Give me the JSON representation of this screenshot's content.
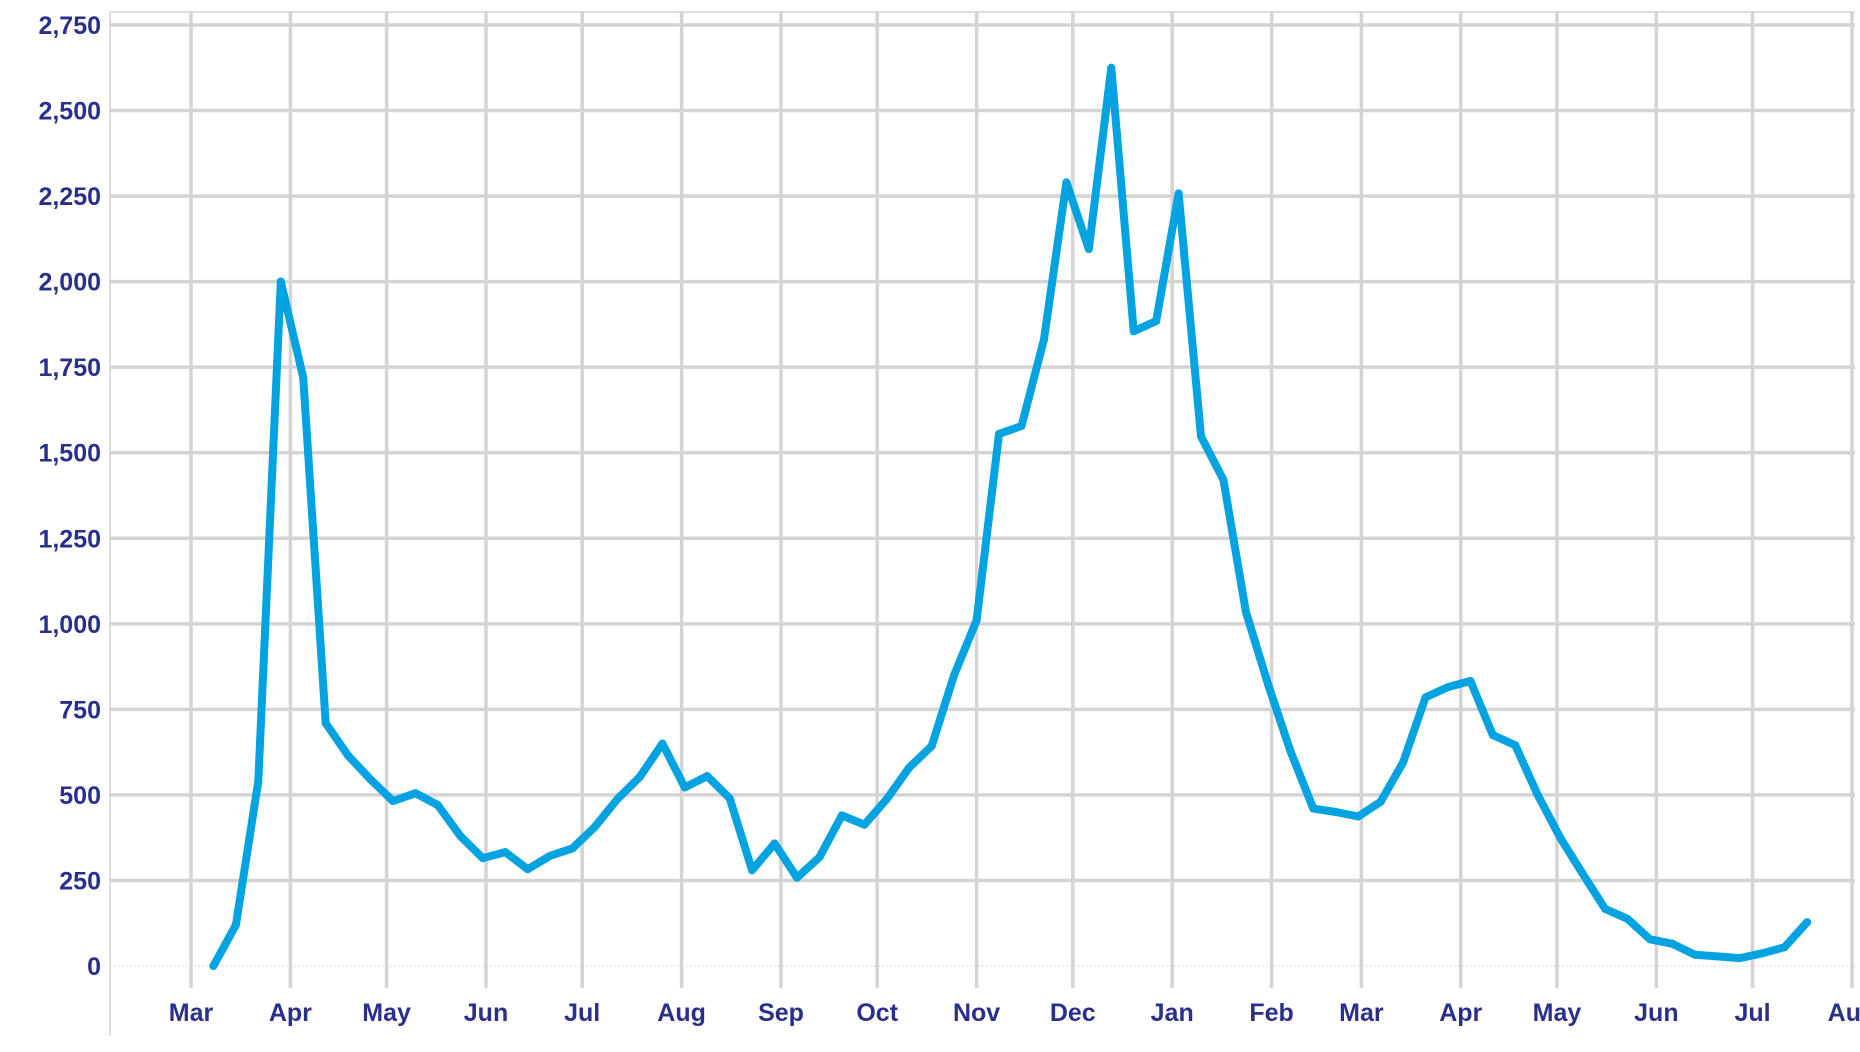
{
  "colors": {
    "line": "#02A3E0",
    "grid": "#D4D4D4",
    "zero_line": "#C8C8C8",
    "tick_label": "#2B2F8C",
    "background": "#FFFFFF"
  },
  "chart_data": {
    "type": "line",
    "title": "",
    "xlabel": "",
    "ylabel": "",
    "grid": true,
    "legend": "none",
    "ylim": [
      0,
      2750
    ],
    "y_ticks": [
      0,
      250,
      500,
      750,
      1000,
      1250,
      1500,
      1750,
      2000,
      2250,
      2500,
      2750
    ],
    "y_tick_labels": [
      "0",
      "250",
      "500",
      "750",
      "1,000",
      "1,250",
      "1,500",
      "1,750",
      "2,000",
      "2,250",
      "2,500",
      "2,750"
    ],
    "x_tick_labels": [
      "Mar",
      "Apr",
      "May",
      "Jun",
      "Jul",
      "Aug",
      "Sep",
      "Oct",
      "Nov",
      "Dec",
      "Jan",
      "Feb",
      "Mar",
      "Apr",
      "May",
      "Jun",
      "Jul",
      "Aug"
    ],
    "x_tick_dates": [
      "2020-03-01",
      "2020-04-01",
      "2020-05-01",
      "2020-06-01",
      "2020-07-01",
      "2020-08-01",
      "2020-09-01",
      "2020-10-01",
      "2020-11-01",
      "2020-12-01",
      "2021-01-01",
      "2021-02-01",
      "2021-03-01",
      "2021-04-01",
      "2021-05-01",
      "2021-06-01",
      "2021-07-01",
      "2021-08-01"
    ],
    "series": [
      {
        "x": [
          "2020-03-08",
          "2020-03-15",
          "2020-03-22",
          "2020-03-29",
          "2020-04-05",
          "2020-04-12",
          "2020-04-19",
          "2020-04-26",
          "2020-05-03",
          "2020-05-10",
          "2020-05-17",
          "2020-05-24",
          "2020-05-31",
          "2020-06-07",
          "2020-06-14",
          "2020-06-21",
          "2020-06-28",
          "2020-07-05",
          "2020-07-12",
          "2020-07-19",
          "2020-07-26",
          "2020-08-02",
          "2020-08-09",
          "2020-08-16",
          "2020-08-23",
          "2020-08-30",
          "2020-09-06",
          "2020-09-13",
          "2020-09-20",
          "2020-09-27",
          "2020-10-04",
          "2020-10-11",
          "2020-10-18",
          "2020-10-25",
          "2020-11-01",
          "2020-11-08",
          "2020-11-15",
          "2020-11-22",
          "2020-11-29",
          "2020-12-06",
          "2020-12-13",
          "2020-12-20",
          "2020-12-27",
          "2021-01-03",
          "2021-01-10",
          "2021-01-17",
          "2021-01-24",
          "2021-01-31",
          "2021-02-07",
          "2021-02-14",
          "2021-02-21",
          "2021-02-28",
          "2021-03-07",
          "2021-03-14",
          "2021-03-21",
          "2021-03-28",
          "2021-04-04",
          "2021-04-11",
          "2021-04-18",
          "2021-04-25",
          "2021-05-02",
          "2021-05-09",
          "2021-05-16",
          "2021-05-23",
          "2021-05-30",
          "2021-06-06",
          "2021-06-13",
          "2021-06-20",
          "2021-06-27",
          "2021-07-04",
          "2021-07-11",
          "2021-07-18"
        ],
        "y": [
          0,
          120,
          540,
          2000,
          1720,
          710,
          615,
          545,
          482,
          505,
          470,
          380,
          315,
          333,
          283,
          322,
          344,
          407,
          488,
          553,
          650,
          522,
          555,
          490,
          280,
          358,
          258,
          318,
          440,
          413,
          488,
          580,
          643,
          850,
          1010,
          1555,
          1578,
          1830,
          2290,
          2095,
          2625,
          1855,
          1885,
          2258,
          1548,
          1420,
          1035,
          820,
          625,
          460,
          450,
          437,
          480,
          595,
          785,
          815,
          833,
          675,
          645,
          500,
          375,
          270,
          167,
          138,
          78,
          65,
          33,
          28,
          23,
          37,
          55,
          128
        ]
      }
    ]
  }
}
